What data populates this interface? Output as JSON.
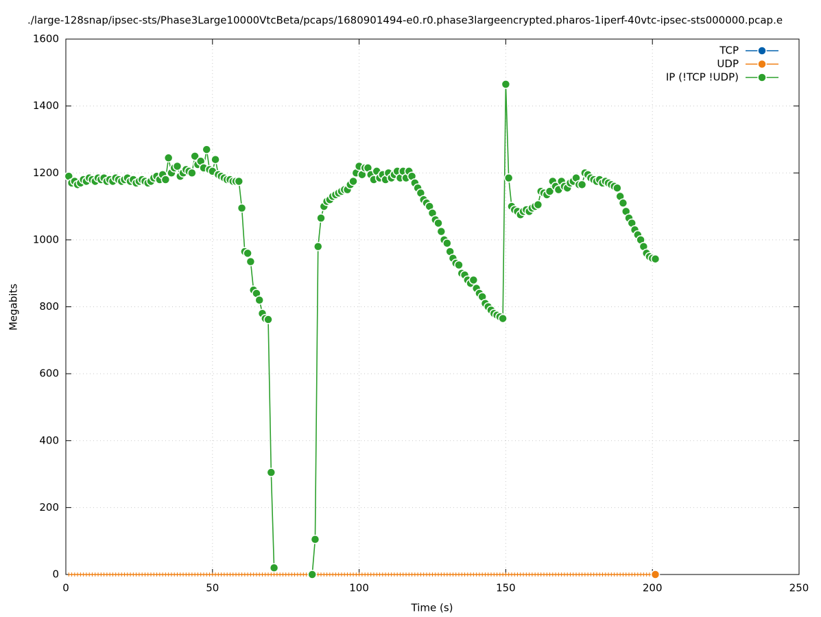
{
  "chart_data": {
    "type": "line",
    "title": "./large-128snap/ipsec-sts/Phase3Large10000VtcBeta/pcaps/1680901494-e0.r0.phase3largeencrypted.pharos-1iperf-40vtc-ipsec-sts000000.pcap.e",
    "x_label": "Time (s)",
    "y_label": "Megabits",
    "xlim": [
      0,
      250
    ],
    "xticks": [
      0,
      50,
      100,
      150,
      200,
      250
    ],
    "ylim": [
      0,
      1600
    ],
    "yticks": [
      0,
      200,
      400,
      600,
      800,
      1000,
      1200,
      1400,
      1600
    ],
    "grid": true,
    "legend": "upper right",
    "x": [
      1,
      2,
      3,
      4,
      5,
      6,
      7,
      8,
      9,
      10,
      11,
      12,
      13,
      14,
      15,
      16,
      17,
      18,
      19,
      20,
      21,
      22,
      23,
      24,
      25,
      26,
      27,
      28,
      29,
      30,
      31,
      32,
      33,
      34,
      35,
      36,
      37,
      38,
      39,
      40,
      41,
      42,
      43,
      44,
      45,
      46,
      47,
      48,
      49,
      50,
      51,
      52,
      53,
      54,
      55,
      56,
      57,
      58,
      59,
      60,
      61,
      62,
      63,
      64,
      65,
      66,
      67,
      68,
      69,
      70,
      71,
      72,
      73,
      74,
      75,
      76,
      77,
      78,
      79,
      80,
      81,
      82,
      83,
      84,
      85,
      86,
      87,
      88,
      89,
      90,
      91,
      92,
      93,
      94,
      95,
      96,
      97,
      98,
      99,
      100,
      101,
      102,
      103,
      104,
      105,
      106,
      107,
      108,
      109,
      110,
      111,
      112,
      113,
      114,
      115,
      116,
      117,
      118,
      119,
      120,
      121,
      122,
      123,
      124,
      125,
      126,
      127,
      128,
      129,
      130,
      131,
      132,
      133,
      134,
      135,
      136,
      137,
      138,
      139,
      140,
      141,
      142,
      143,
      144,
      145,
      146,
      147,
      148,
      149,
      150,
      151,
      152,
      153,
      154,
      155,
      156,
      157,
      158,
      159,
      160,
      161,
      162,
      163,
      164,
      165,
      166,
      167,
      168,
      169,
      170,
      171,
      172,
      173,
      174,
      175,
      176,
      177,
      178,
      179,
      180,
      181,
      182,
      183,
      184,
      185,
      186,
      187,
      188,
      189,
      190,
      191,
      192,
      193,
      194,
      195,
      196,
      197,
      198,
      199,
      200,
      201
    ],
    "series": [
      {
        "name": "TCP",
        "color": "#0060ad",
        "values": [
          null,
          null,
          null,
          null,
          null,
          null,
          null,
          null,
          null,
          null,
          null,
          null,
          null,
          null,
          null,
          null,
          null,
          null,
          null,
          null,
          null,
          null,
          null,
          null,
          null,
          null,
          null,
          null,
          null,
          null,
          null,
          null,
          null,
          null,
          null,
          null,
          null,
          null,
          null,
          null,
          null,
          null,
          null,
          null,
          null,
          null,
          null,
          null,
          null,
          null,
          null,
          null,
          null,
          null,
          null,
          null,
          null,
          null,
          null,
          null,
          null,
          null,
          null,
          null,
          null,
          null,
          null,
          null,
          null,
          null,
          null,
          null,
          null,
          null,
          null,
          null,
          null,
          null,
          null,
          null,
          null,
          null,
          null,
          null,
          null,
          null,
          null,
          null,
          null,
          null,
          null,
          null,
          null,
          null,
          null,
          null,
          null,
          null,
          null,
          null,
          null,
          null,
          null,
          null,
          null,
          null,
          null,
          null,
          null,
          null,
          null,
          null,
          null,
          null,
          null,
          null,
          null,
          null,
          null,
          null,
          null,
          null,
          null,
          null,
          null,
          null,
          null,
          null,
          null,
          null,
          null,
          null,
          null,
          null,
          null,
          null,
          null,
          null,
          null,
          null,
          null,
          null,
          null,
          null,
          null,
          null,
          null,
          null,
          null,
          null,
          null,
          null,
          null,
          null,
          null,
          null,
          null,
          null,
          null,
          null,
          null,
          null,
          null,
          null,
          null,
          null,
          null,
          null,
          null,
          null,
          null,
          null,
          null,
          null,
          null,
          null,
          null,
          null,
          null,
          null,
          null,
          null,
          null,
          null,
          null,
          null,
          null,
          null,
          null,
          null,
          null,
          null,
          null,
          null,
          null,
          null,
          null,
          null,
          null,
          null,
          null
        ]
      },
      {
        "name": "UDP",
        "color": "#f07f11",
        "values": [
          0,
          0,
          0,
          0,
          0,
          0,
          0,
          0,
          0,
          0,
          0,
          0,
          0,
          0,
          0,
          0,
          0,
          0,
          0,
          0,
          0,
          0,
          0,
          0,
          0,
          0,
          0,
          0,
          0,
          0,
          0,
          0,
          0,
          0,
          0,
          0,
          0,
          0,
          0,
          0,
          0,
          0,
          0,
          0,
          0,
          0,
          0,
          0,
          0,
          0,
          0,
          0,
          0,
          0,
          0,
          0,
          0,
          0,
          0,
          0,
          0,
          0,
          0,
          0,
          0,
          0,
          0,
          0,
          0,
          0,
          0,
          0,
          0,
          0,
          0,
          0,
          0,
          0,
          0,
          0,
          0,
          0,
          0,
          0,
          0,
          0,
          0,
          0,
          0,
          0,
          0,
          0,
          0,
          0,
          0,
          0,
          0,
          0,
          0,
          0,
          0,
          0,
          0,
          0,
          0,
          0,
          0,
          0,
          0,
          0,
          0,
          0,
          0,
          0,
          0,
          0,
          0,
          0,
          0,
          0,
          0,
          0,
          0,
          0,
          0,
          0,
          0,
          0,
          0,
          0,
          0,
          0,
          0,
          0,
          0,
          0,
          0,
          0,
          0,
          0,
          0,
          0,
          0,
          0,
          0,
          0,
          0,
          0,
          0,
          0,
          0,
          0,
          0,
          0,
          0,
          0,
          0,
          0,
          0,
          0,
          0,
          0,
          0,
          0,
          0,
          0,
          0,
          0,
          0,
          0,
          0,
          0,
          0,
          0,
          0,
          0,
          0,
          0,
          0,
          0,
          0,
          0,
          0,
          0,
          0,
          0,
          0,
          0,
          0,
          0,
          0,
          0,
          0,
          0,
          0,
          0,
          0,
          0,
          0,
          0,
          0
        ]
      },
      {
        "name": "IP (!TCP  !UDP)",
        "color": "#2ca02c",
        "values": [
          1190,
          1170,
          1175,
          1165,
          1170,
          1180,
          1175,
          1185,
          1180,
          1175,
          1185,
          1180,
          1185,
          1175,
          1180,
          1175,
          1185,
          1180,
          1175,
          1180,
          1185,
          1175,
          1180,
          1170,
          1175,
          1180,
          1175,
          1170,
          1175,
          1185,
          1190,
          1180,
          1195,
          1180,
          1245,
          1200,
          1215,
          1220,
          1190,
          1200,
          1210,
          1205,
          1200,
          1250,
          1225,
          1235,
          1215,
          1270,
          1210,
          1205,
          1240,
          1195,
          1190,
          1185,
          1180,
          1180,
          1175,
          1175,
          1175,
          1095,
          965,
          960,
          935,
          850,
          840,
          820,
          780,
          765,
          762,
          305,
          20,
          null,
          null,
          null,
          null,
          null,
          null,
          null,
          null,
          null,
          null,
          null,
          null,
          0,
          105,
          980,
          1065,
          1100,
          1115,
          1120,
          1130,
          1135,
          1140,
          1145,
          1150,
          1150,
          1165,
          1175,
          1200,
          1220,
          1195,
          1215,
          1215,
          1195,
          1180,
          1205,
          1185,
          1195,
          1180,
          1200,
          1185,
          1195,
          1205,
          1185,
          1205,
          1185,
          1205,
          1190,
          1170,
          1155,
          1140,
          1120,
          1110,
          1100,
          1080,
          1060,
          1050,
          1025,
          1000,
          990,
          965,
          945,
          930,
          925,
          900,
          895,
          880,
          870,
          880,
          855,
          840,
          830,
          810,
          800,
          790,
          780,
          775,
          770,
          765,
          1465,
          1185,
          1100,
          1090,
          1085,
          1075,
          1085,
          1090,
          1085,
          1095,
          1100,
          1105,
          1145,
          1140,
          1135,
          1145,
          1175,
          1160,
          1150,
          1175,
          1160,
          1155,
          1170,
          1175,
          1185,
          1165,
          1165,
          1200,
          1195,
          1185,
          1180,
          1175,
          1180,
          1170,
          1175,
          1170,
          1165,
          1160,
          1155,
          1130,
          1110,
          1085,
          1065,
          1050,
          1030,
          1015,
          1000,
          980,
          960,
          950,
          945,
          943
        ]
      }
    ]
  }
}
